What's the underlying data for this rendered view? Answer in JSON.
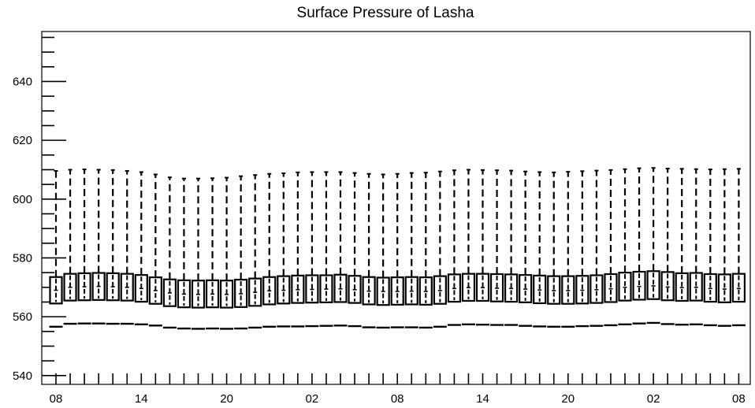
{
  "chart_data": {
    "type": "box",
    "title": "Surface Pressure of Lasha",
    "xlabel": "",
    "ylabel": "",
    "ylim": [
      537,
      657
    ],
    "y_ticks": [
      540,
      560,
      580,
      600,
      620,
      640
    ],
    "x_tick_labels": [
      "08",
      "14",
      "20",
      "02",
      "08",
      "14",
      "20",
      "02",
      "08"
    ],
    "grid": false,
    "series": [
      {
        "x": [
          0,
          1,
          2,
          3,
          4,
          5,
          6,
          7,
          8,
          9,
          10,
          11,
          12,
          13,
          14,
          15,
          16,
          17,
          18,
          19,
          20,
          21,
          22,
          23,
          24,
          25,
          26,
          27,
          28,
          29,
          30,
          31,
          32,
          33,
          34,
          35,
          36,
          37,
          38,
          39,
          40,
          41,
          42,
          43,
          44,
          45,
          46,
          47,
          48
        ],
        "min": [
          556.6,
          557.6,
          557.7,
          557.7,
          557.6,
          557.6,
          557.4,
          557.0,
          556.3,
          556.0,
          555.9,
          556.0,
          555.9,
          556.0,
          556.3,
          556.6,
          556.7,
          556.7,
          556.8,
          556.9,
          557.0,
          556.8,
          556.4,
          556.3,
          556.4,
          556.4,
          556.3,
          556.6,
          557.2,
          557.4,
          557.3,
          557.2,
          557.2,
          556.9,
          556.7,
          556.6,
          556.6,
          556.8,
          556.9,
          557.1,
          557.4,
          557.7,
          557.9,
          557.5,
          557.3,
          557.4,
          557.1,
          556.9,
          557.1
        ],
        "q1": [
          564.5,
          565.5,
          565.6,
          565.7,
          565.6,
          565.5,
          565.1,
          564.4,
          563.6,
          563.2,
          563.1,
          563.2,
          563.1,
          563.3,
          563.7,
          564.2,
          564.5,
          564.7,
          564.8,
          564.9,
          565.0,
          564.7,
          564.2,
          564.0,
          564.1,
          564.2,
          564.1,
          564.4,
          565.1,
          565.4,
          565.4,
          565.2,
          565.1,
          564.9,
          564.6,
          564.4,
          564.4,
          564.5,
          564.7,
          565.0,
          565.5,
          565.8,
          566.0,
          565.6,
          565.4,
          565.5,
          565.1,
          564.9,
          565.1
        ],
        "median": [
          569.0,
          570.0,
          570.2,
          570.3,
          570.2,
          570.0,
          569.6,
          568.9,
          568.1,
          567.7,
          567.6,
          567.7,
          567.6,
          567.8,
          568.3,
          568.8,
          569.0,
          569.2,
          569.3,
          569.4,
          569.5,
          569.2,
          568.7,
          568.6,
          568.6,
          568.7,
          568.6,
          568.9,
          569.6,
          569.9,
          569.9,
          569.7,
          569.6,
          569.4,
          569.1,
          568.9,
          568.9,
          569.0,
          569.2,
          569.5,
          570.0,
          570.3,
          570.5,
          570.1,
          569.9,
          570.0,
          569.6,
          569.4,
          569.6
        ],
        "q3": [
          573.5,
          574.6,
          574.8,
          574.9,
          574.8,
          574.6,
          574.2,
          573.4,
          572.7,
          572.4,
          572.3,
          572.4,
          572.3,
          572.6,
          573.0,
          573.5,
          573.8,
          574.0,
          574.1,
          574.1,
          574.3,
          573.9,
          573.5,
          573.3,
          573.4,
          573.5,
          573.4,
          573.8,
          574.4,
          574.6,
          574.6,
          574.5,
          574.4,
          574.2,
          574.0,
          573.8,
          573.8,
          573.9,
          574.1,
          574.5,
          575.0,
          575.3,
          575.5,
          575.2,
          574.8,
          574.9,
          574.5,
          574.4,
          574.6
        ],
        "max": [
          609.6,
          610.0,
          610.1,
          610.0,
          609.9,
          609.6,
          609.2,
          608.4,
          607.4,
          607.0,
          607.0,
          607.1,
          607.3,
          607.8,
          608.2,
          608.6,
          608.8,
          609.1,
          609.2,
          609.2,
          609.2,
          608.9,
          608.6,
          608.4,
          608.6,
          608.9,
          609.0,
          609.4,
          609.8,
          610.0,
          609.9,
          609.8,
          609.7,
          609.4,
          609.2,
          609.1,
          609.3,
          609.5,
          609.7,
          609.9,
          610.2,
          610.5,
          610.6,
          610.4,
          610.3,
          610.2,
          610.1,
          610.2,
          610.3
        ]
      }
    ]
  }
}
